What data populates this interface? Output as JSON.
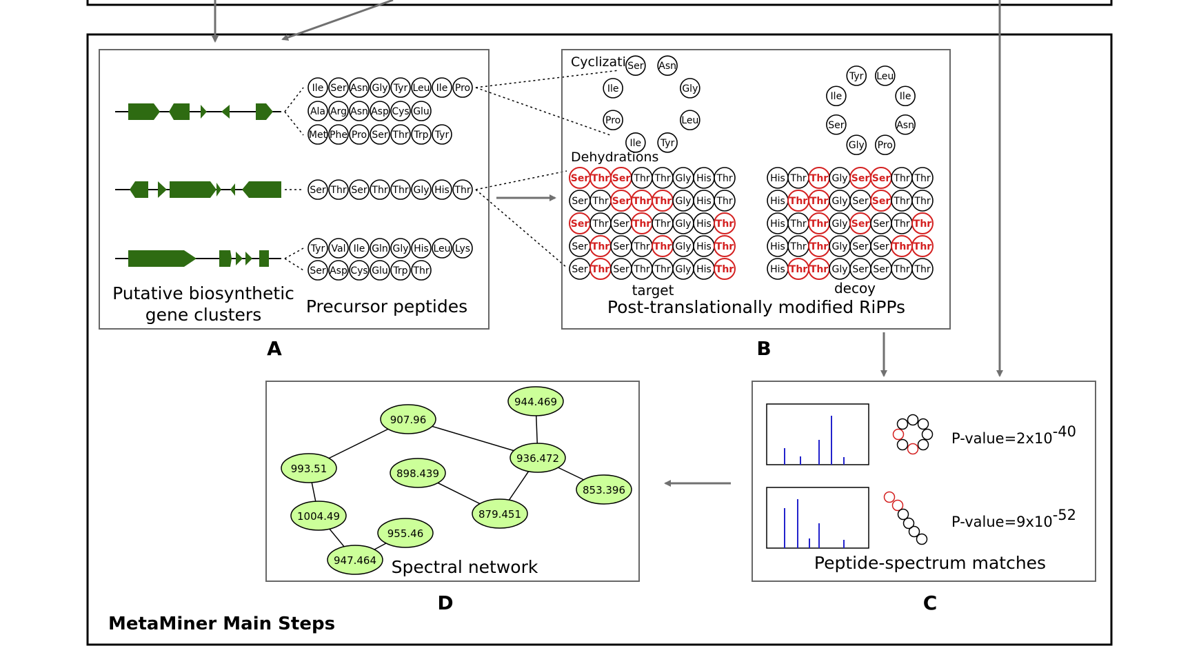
{
  "colors": {
    "gene": "#2e6b12",
    "modified": "#d42020",
    "node_fill": "#ccff99",
    "arrow": "#707070",
    "spike": "#2222cc"
  },
  "footer_title": "MetaMiner Main Steps",
  "panel_a": {
    "letter": "A",
    "clusters_label_1": "Putative biosynthetic",
    "clusters_label_2": "gene clusters",
    "precursors_label": "Precursor peptides",
    "peptides": [
      [
        "Ile",
        "Ser",
        "Asn",
        "Gly",
        "Tyr",
        "Leu",
        "Ile",
        "Pro"
      ],
      [
        "Ala",
        "Arg",
        "Asn",
        "Asp",
        "Cys",
        "Glu"
      ],
      [
        "Met",
        "Phe",
        "Pro",
        "Ser",
        "Thr",
        "Trp",
        "Tyr"
      ],
      [
        "Ser",
        "Thr",
        "Ser",
        "Thr",
        "Thr",
        "Gly",
        "His",
        "Thr"
      ],
      [
        "Tyr",
        "Val",
        "Ile",
        "Gln",
        "Gly",
        "His",
        "Leu",
        "Lys"
      ],
      [
        "Ser",
        "Asp",
        "Cys",
        "Glu",
        "Trp",
        "Thr"
      ]
    ]
  },
  "panel_b": {
    "letter": "B",
    "cyclization_label": "Cyclization",
    "dehydrations_label": "Dehydrations",
    "ring1": [
      "Ser",
      "Asn",
      "Gly",
      "Leu",
      "Tyr",
      "Ile",
      "Pro",
      "Ile"
    ],
    "ring2": [
      "Tyr",
      "Leu",
      "Ile",
      "Asn",
      "Pro",
      "Gly",
      "Ser",
      "Ile"
    ],
    "target_label": "target",
    "decoy_label": "decoy",
    "caption": "Post-translationally modified RiPPs",
    "target_rows": [
      [
        "Ser",
        "Thr",
        "Ser",
        "Thr",
        "Thr",
        "Gly",
        "His",
        "Thr"
      ],
      [
        "Ser",
        "Thr",
        "Ser",
        "Thr",
        "Thr",
        "Gly",
        "His",
        "Thr"
      ],
      [
        "Ser",
        "Thr",
        "Ser",
        "Thr",
        "Thr",
        "Gly",
        "His",
        "Thr"
      ],
      [
        "Ser",
        "Thr",
        "Ser",
        "Thr",
        "Thr",
        "Gly",
        "His",
        "Thr"
      ],
      [
        "Ser",
        "Thr",
        "Ser",
        "Thr",
        "Thr",
        "Gly",
        "His",
        "Thr"
      ]
    ],
    "target_modified": [
      [
        0,
        1,
        2
      ],
      [
        2,
        3,
        4
      ],
      [
        0,
        3,
        7
      ],
      [
        1,
        4,
        7
      ],
      [
        1,
        7
      ]
    ],
    "decoy_rows": [
      [
        "His",
        "Thr",
        "Thr",
        "Gly",
        "Ser",
        "Ser",
        "Thr",
        "Thr"
      ],
      [
        "His",
        "Thr",
        "Thr",
        "Gly",
        "Ser",
        "Ser",
        "Thr",
        "Thr"
      ],
      [
        "His",
        "Thr",
        "Thr",
        "Gly",
        "Ser",
        "Ser",
        "Thr",
        "Thr"
      ],
      [
        "His",
        "Thr",
        "Thr",
        "Gly",
        "Ser",
        "Ser",
        "Thr",
        "Thr"
      ],
      [
        "His",
        "Thr",
        "Thr",
        "Gly",
        "Ser",
        "Ser",
        "Thr",
        "Thr"
      ]
    ],
    "decoy_modified": [
      [
        2,
        4,
        5
      ],
      [
        1,
        2,
        5
      ],
      [
        2,
        4,
        7
      ],
      [
        2,
        6,
        7
      ],
      [
        1,
        2
      ]
    ]
  },
  "panel_c": {
    "letter": "C",
    "caption": "Peptide-spectrum matches",
    "match1_prefix": "P-value=2x10",
    "match1_exp": "-40",
    "match2_prefix": "P-value=9x10",
    "match2_exp": "-52"
  },
  "panel_d": {
    "letter": "D",
    "caption": "Spectral network",
    "nodes": [
      {
        "id": "n1",
        "label": "907.96"
      },
      {
        "id": "n2",
        "label": "944.469"
      },
      {
        "id": "n3",
        "label": "993.51"
      },
      {
        "id": "n4",
        "label": "936.472"
      },
      {
        "id": "n5",
        "label": "898.439"
      },
      {
        "id": "n6",
        "label": "853.396"
      },
      {
        "id": "n7",
        "label": "1004.49"
      },
      {
        "id": "n8",
        "label": "879.451"
      },
      {
        "id": "n9",
        "label": "955.46"
      },
      {
        "id": "n10",
        "label": "947.464"
      }
    ],
    "edges": [
      [
        "n1",
        "n3"
      ],
      [
        "n1",
        "n4"
      ],
      [
        "n2",
        "n4"
      ],
      [
        "n4",
        "n6"
      ],
      [
        "n4",
        "n8"
      ],
      [
        "n5",
        "n8"
      ],
      [
        "n3",
        "n7"
      ],
      [
        "n7",
        "n10"
      ],
      [
        "n10",
        "n9"
      ]
    ]
  }
}
